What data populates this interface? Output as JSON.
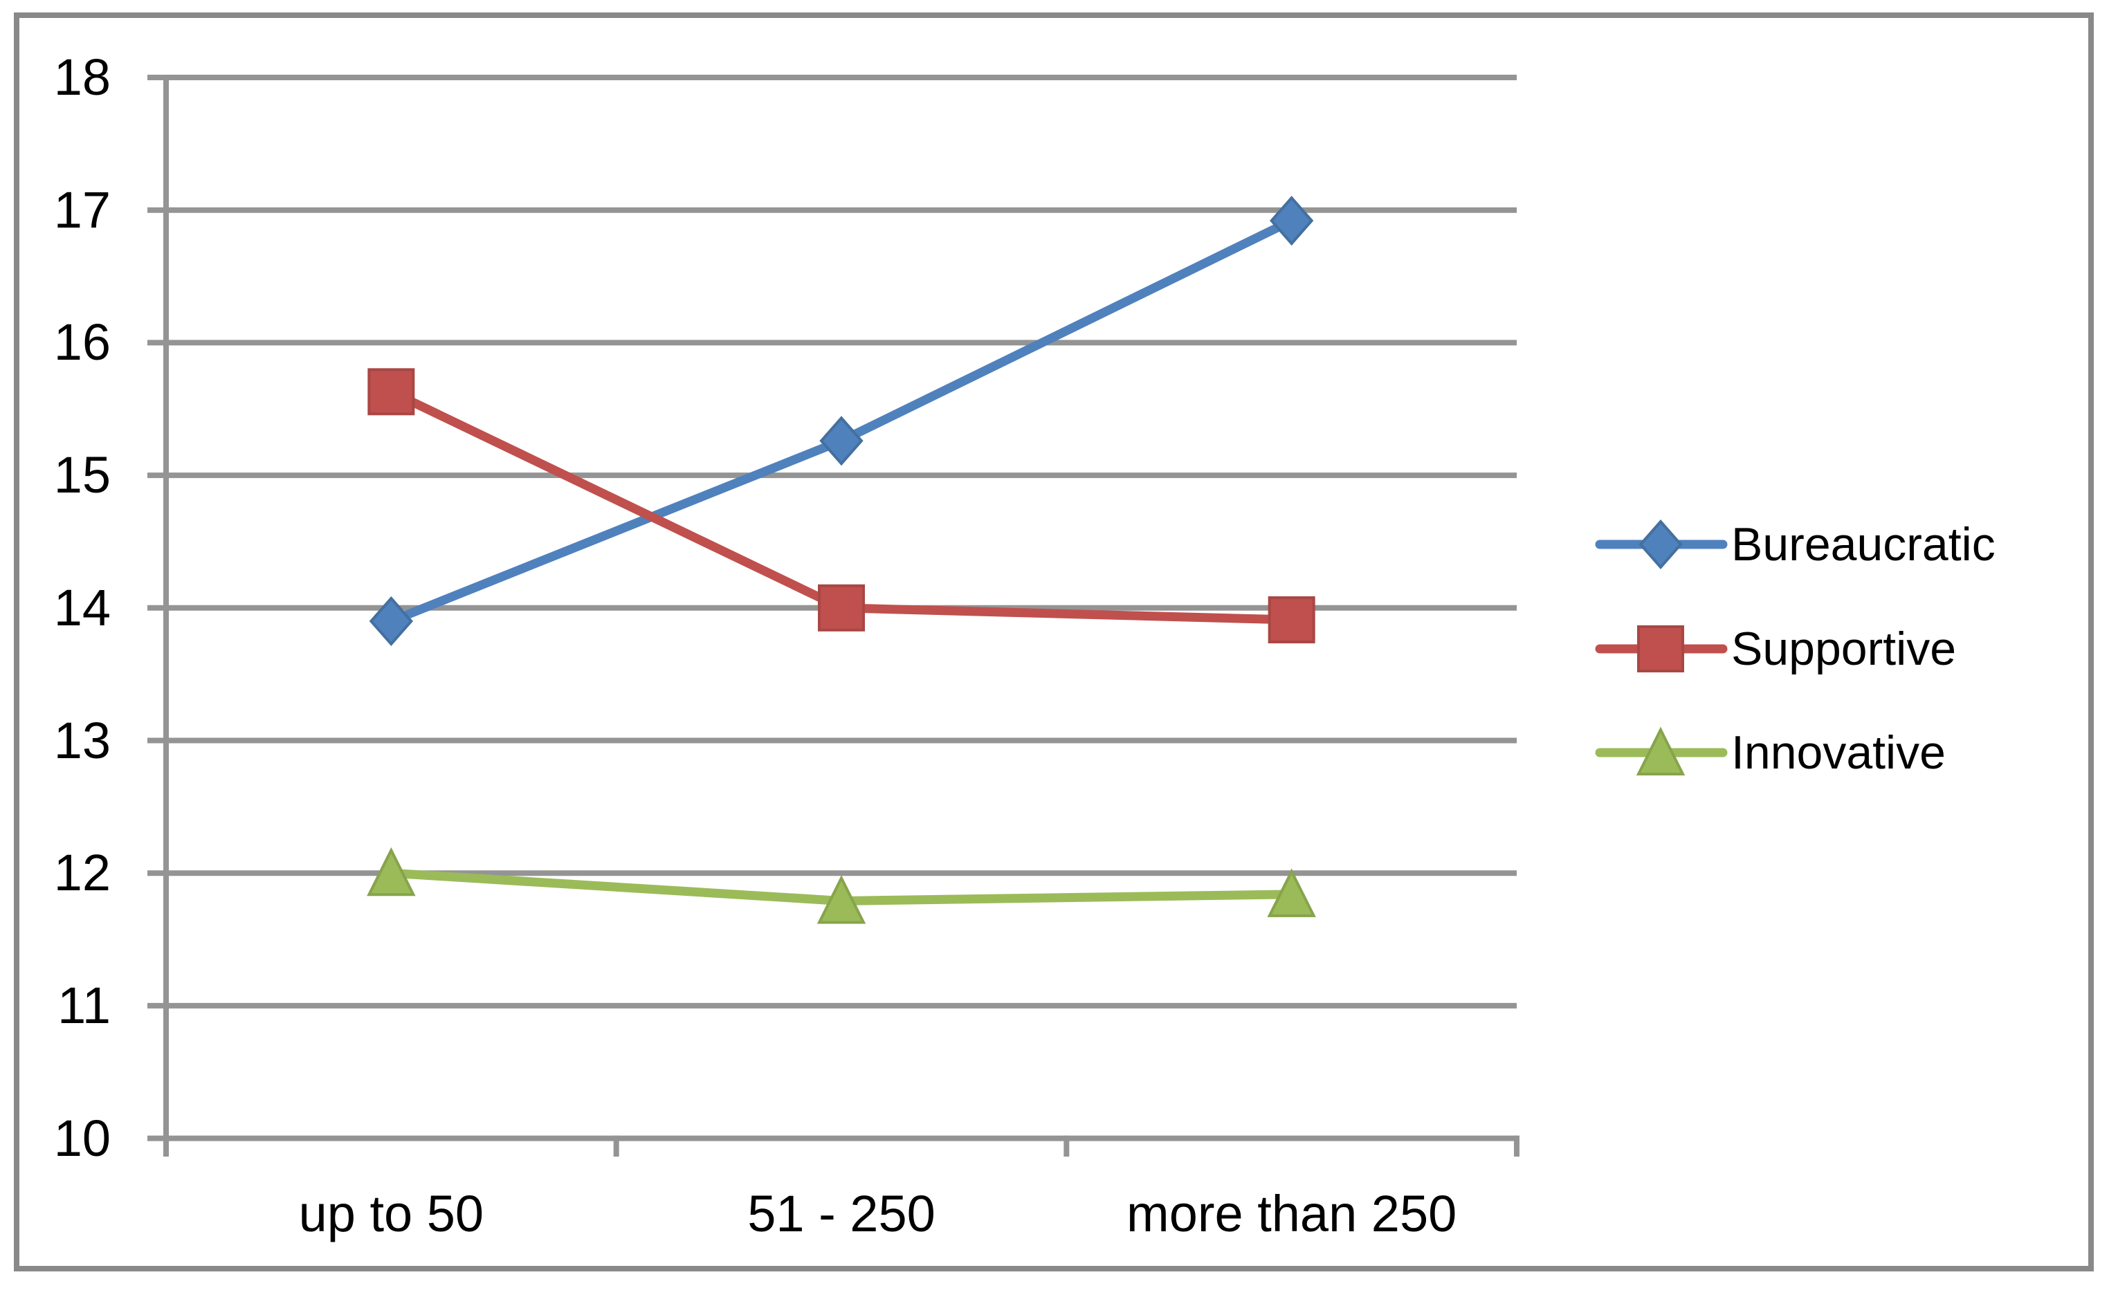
{
  "chart_data": {
    "type": "line",
    "title": "",
    "xlabel": "",
    "ylabel": "",
    "categories": [
      "up to 50",
      "51 - 250",
      "more than 250"
    ],
    "series": [
      {
        "name": "Bureaucratic",
        "values": [
          13.9,
          15.26,
          16.92
        ],
        "color": "#4F81BD",
        "edge_color": "#44709F",
        "marker": "diamond"
      },
      {
        "name": "Supportive",
        "values": [
          15.63,
          14.0,
          13.91
        ],
        "color": "#C0504D",
        "edge_color": "#A84744",
        "marker": "square"
      },
      {
        "name": "Innovative",
        "values": [
          12.0,
          11.79,
          11.84
        ],
        "color": "#9BBB59",
        "edge_color": "#87A44C",
        "marker": "triangle"
      }
    ],
    "ylim": [
      10,
      18
    ],
    "yticks": [
      10,
      11,
      12,
      13,
      14,
      15,
      16,
      17,
      18
    ],
    "ytick_labels": [
      "10",
      "11",
      "12",
      "13",
      "14",
      "15",
      "16",
      "17",
      "18"
    ],
    "grid": true,
    "gridline_color": "#949494",
    "axis_color": "#949494",
    "frame_border_color": "#898989",
    "text_color": "#000000",
    "background_color": "#FFFFFF",
    "legend_position": "right"
  }
}
